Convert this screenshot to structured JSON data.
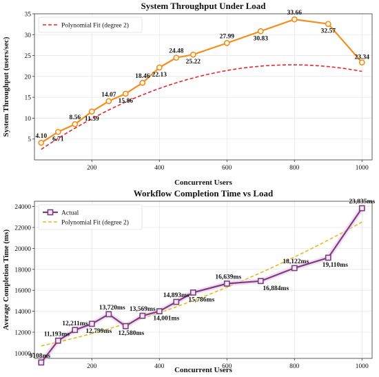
{
  "chart_data": [
    {
      "type": "line",
      "title": "System Throughput Under Load",
      "xlabel": "Concurrent Users",
      "ylabel": "System Throughput (users/sec)",
      "xlim": [
        30,
        1030
      ],
      "ylim": [
        0,
        35
      ],
      "xticks": [
        200,
        400,
        600,
        800,
        1000
      ],
      "yticks": [
        5,
        10,
        15,
        20,
        25,
        30,
        35
      ],
      "grid": true,
      "legend_position": "top-left",
      "series": [
        {
          "kind": "markers",
          "color": "#f28e1c",
          "x": [
            50,
            100,
            150,
            200,
            250,
            300,
            350,
            400,
            450,
            500,
            600,
            700,
            800,
            900,
            1000
          ],
          "y": [
            4.1,
            6.71,
            8.56,
            11.59,
            14.07,
            15.86,
            18.46,
            22.13,
            24.48,
            25.22,
            27.99,
            30.83,
            33.66,
            32.57,
            23.34
          ],
          "labels": [
            "4.10",
            "6.71",
            "8.56",
            "11.59",
            "14.07",
            "15.86",
            "18.46",
            "22.13",
            "24.48",
            "25.22",
            "27.99",
            "30.83",
            "33.66",
            "32.57",
            "23.34"
          ]
        },
        {
          "name": "Polynomial Fit (degree 2)",
          "kind": "fit",
          "color": "#e8232b",
          "coeffs": [
            -3.67e-05,
            0.0582,
            -0.3
          ]
        }
      ]
    },
    {
      "type": "line",
      "title": "Workflow Completion Time vs Load",
      "xlabel": "Concurrent Users",
      "ylabel": "Average Completion Time (ms)",
      "xlim": [
        30,
        1030
      ],
      "ylim": [
        9500,
        24500
      ],
      "xticks": [
        200,
        400,
        600,
        800,
        1000
      ],
      "yticks": [
        10000,
        12000,
        14000,
        16000,
        18000,
        20000,
        22000,
        24000
      ],
      "grid": true,
      "legend_position": "top-left",
      "series": [
        {
          "name": "Actual",
          "kind": "markers",
          "color": "#7b3f7e",
          "x": [
            50,
            100,
            150,
            200,
            250,
            300,
            350,
            400,
            450,
            500,
            600,
            700,
            800,
            900,
            1000
          ],
          "y": [
            9108,
            11193,
            12211,
            12799,
            13720,
            12580,
            13569,
            14001,
            14893,
            15786,
            16639,
            16884,
            18122,
            19110,
            23835
          ],
          "labels": [
            "9108ms",
            "11,193ms",
            "12,211ms",
            "12,799ms",
            "13,720ms",
            "12,580ms",
            "13,569ms",
            "14,001ms",
            "14,893ms",
            "15,786ms",
            "16,639ms",
            "16,884ms",
            "18,122ms",
            "19,110ms",
            "23,835ms"
          ]
        },
        {
          "name": "Polynomial Fit (degree 2)",
          "kind": "fit",
          "color": "#e6b81e",
          "coeffs": [
            0.00567,
            6.5,
            10350
          ]
        }
      ]
    }
  ]
}
